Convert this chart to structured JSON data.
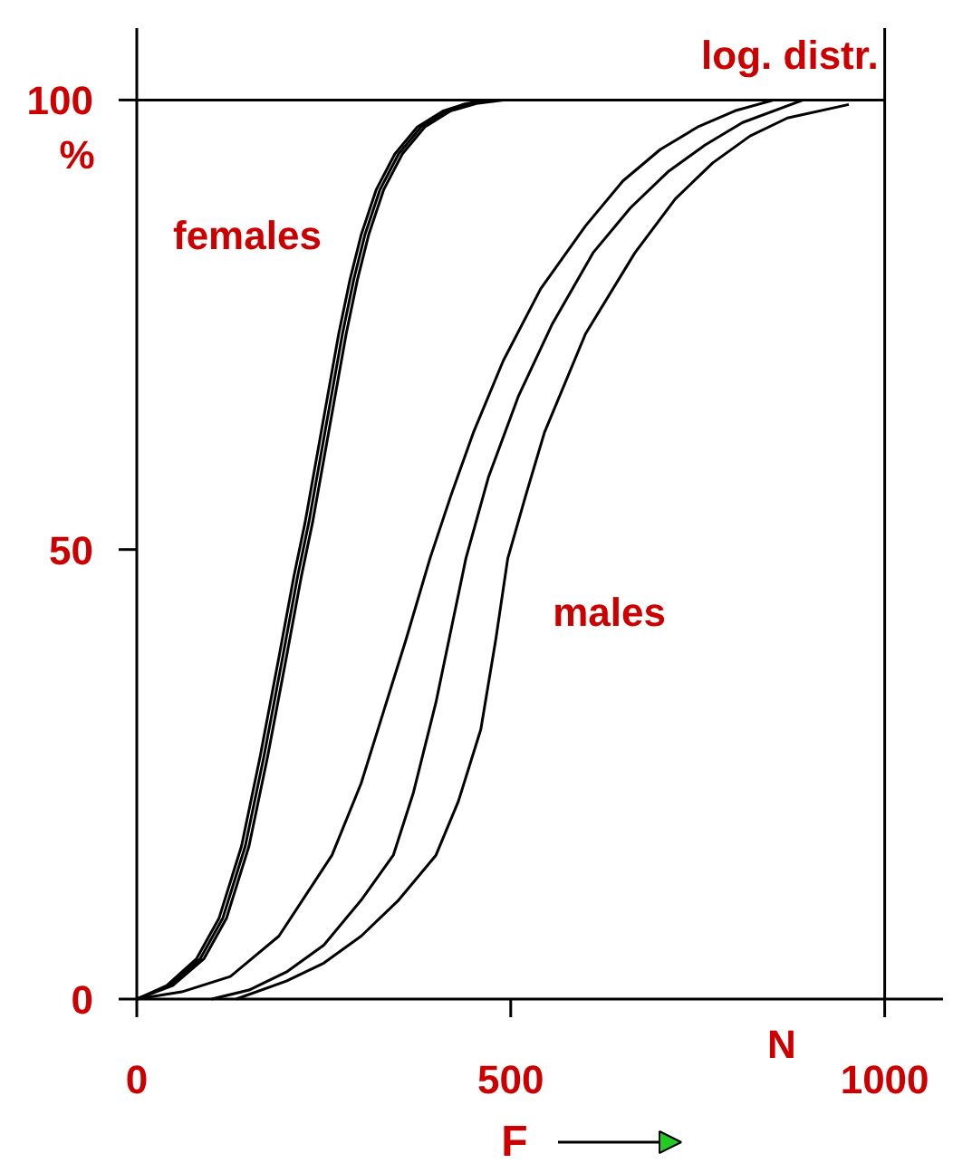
{
  "chart_data": {
    "type": "line",
    "xlabel": "F",
    "ylabel": "%",
    "xlim": [
      0,
      1078
    ],
    "ylim": [
      0,
      108
    ],
    "xticks": [
      0,
      500,
      1000
    ],
    "yticks": [
      0,
      50,
      100
    ],
    "grid": false,
    "marker": "none",
    "line_style": "solid",
    "series": [
      {
        "color": "#000000",
        "x": [
          0,
          40,
          80,
          110,
          140,
          165,
          190,
          210,
          225,
          240,
          255,
          270,
          285,
          300,
          320,
          345,
          375,
          410,
          440,
          470
        ],
        "values": [
          0,
          1.5,
          4.5,
          9,
          17,
          27,
          38,
          47,
          53,
          60,
          67,
          74,
          80,
          85,
          90,
          94,
          97,
          98.8,
          99.6,
          100
        ]
      },
      {
        "color": "#000000",
        "x": [
          0,
          44,
          85,
          115,
          145,
          170,
          195,
          215,
          230,
          245,
          260,
          275,
          290,
          305,
          325,
          350,
          380,
          415,
          447,
          480
        ],
        "values": [
          0,
          1.5,
          4.5,
          9,
          17,
          27,
          38,
          47,
          53,
          60,
          67,
          74,
          80,
          85,
          90,
          94,
          97,
          98.8,
          99.6,
          100
        ]
      },
      {
        "color": "#000000",
        "x": [
          0,
          48,
          90,
          120,
          150,
          175,
          200,
          220,
          235,
          250,
          265,
          280,
          295,
          310,
          330,
          355,
          385,
          420,
          454,
          490
        ],
        "values": [
          0,
          1.5,
          4.5,
          9,
          17,
          27,
          38,
          47,
          53,
          60,
          67,
          74,
          80,
          85,
          90,
          94,
          97,
          98.8,
          99.6,
          100
        ]
      },
      {
        "color": "#000000",
        "x": [
          0,
          60,
          125,
          190,
          261,
          300,
          330,
          360,
          392,
          420,
          450,
          490,
          540,
          600,
          650,
          700,
          750,
          800,
          852
        ],
        "values": [
          0,
          0.8,
          2.5,
          7,
          16,
          24,
          32,
          40,
          49,
          56,
          63,
          71,
          79,
          86,
          91,
          94.5,
          97,
          98.8,
          100
        ]
      },
      {
        "color": "#000000",
        "x": [
          100,
          150,
          200,
          250,
          300,
          343,
          370,
          400,
          420,
          440,
          470,
          510,
          555,
          610,
          660,
          710,
          760,
          810,
          891
        ],
        "values": [
          0,
          1,
          3,
          6,
          11,
          16,
          23,
          33,
          41,
          49,
          58,
          67,
          75,
          83,
          88,
          92,
          95,
          97.5,
          100
        ]
      },
      {
        "color": "#000000",
        "x": [
          133,
          200,
          250,
          300,
          350,
          400,
          430,
          460,
          480,
          496,
          520,
          545,
          600,
          666,
          720,
          770,
          820,
          870,
          952
        ],
        "values": [
          0,
          2,
          4,
          7,
          11,
          16,
          22,
          30,
          40,
          49,
          56,
          63,
          74,
          83,
          89,
          93,
          96,
          98,
          99.5
        ]
      }
    ],
    "ref_lines": [
      {
        "axis": "y",
        "value": 100
      },
      {
        "axis": "x",
        "value": 1000
      }
    ],
    "annotations": [
      "females",
      "males",
      "log. distr.",
      "N"
    ]
  }
}
